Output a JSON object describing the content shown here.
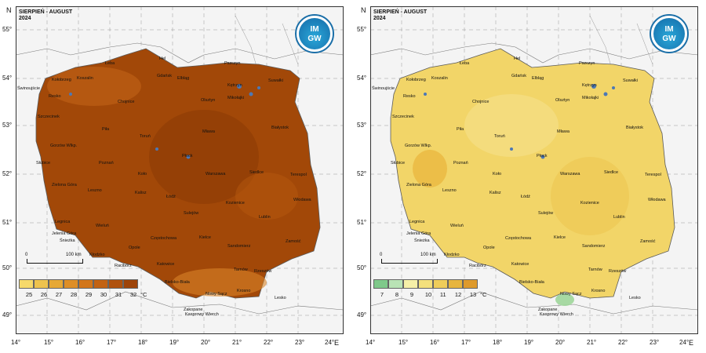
{
  "title_line1": "SIERPIEŃ - AUGUST",
  "title_line2": "2024",
  "axis_north": "N",
  "axis_east": "E",
  "latitudes": [
    "55°",
    "54°",
    "53°",
    "52°",
    "51°",
    "50°",
    "49°"
  ],
  "longitudes": [
    "14°",
    "15°",
    "16°",
    "17°",
    "18°",
    "19°",
    "20°",
    "21°",
    "22°",
    "23°",
    "24°"
  ],
  "scale": {
    "zero": "0",
    "label": "100 km"
  },
  "logo": {
    "line1": "IM",
    "line2": "GW"
  },
  "cities": [
    "Hel",
    "Łeba",
    "Gdańsk",
    "Elbląg",
    "Koszalin",
    "Kołobrzeg",
    "Świnoujście",
    "Resko",
    "Szczecinek",
    "Chojnice",
    "Olsztyn",
    "Kętrzyn",
    "Mikołajki",
    "Suwałki",
    "Białystok",
    "Pszczyn",
    "Piła",
    "Gorzów Wlkp.",
    "Toruń",
    "Mława",
    "Płock",
    "Słubice",
    "Poznań",
    "Koło",
    "Warszawa",
    "Siedlce",
    "Terespol",
    "Zielona Góra",
    "Leszno",
    "Kalisz",
    "Łódź",
    "Włodawa",
    "Sulejów",
    "Kozienice",
    "Legnica",
    "Wieluń",
    "Lublin",
    "Jelenia Góra",
    "Śnieżka",
    "Częstochowa",
    "Kielce",
    "Sandomierz",
    "Opole",
    "Zamość",
    "Kłodzko",
    "Racibórz",
    "Katowice",
    "Tarnów",
    "Bielsko-Biała",
    "Rzeszów",
    "Krosno",
    "Nowy Sącz",
    "Lesko",
    "Zakopane",
    "Kasprowy Wierch"
  ],
  "panels": [
    {
      "id": "max-temperature",
      "legend_colors": [
        "#f6d96a",
        "#eec34e",
        "#e6a835",
        "#de8e26",
        "#d2761b",
        "#c26213",
        "#b0520e",
        "#9e4409"
      ],
      "legend_ticks": [
        "25",
        "26",
        "27",
        "28",
        "29",
        "30",
        "31",
        "32"
      ],
      "unit": "°C",
      "map_fill": "#a24808",
      "patch_colors": [
        "#8a3a06",
        "#c7681a",
        "#d98428",
        "#b85a10"
      ]
    },
    {
      "id": "min-temperature",
      "legend_colors": [
        "#7fc98a",
        "#b9e3b5",
        "#f6f0a8",
        "#f4e07c",
        "#efcd5a",
        "#e7b53e",
        "#de9a2c"
      ],
      "legend_ticks": [
        "7",
        "8",
        "9",
        "10",
        "11",
        "12",
        "13"
      ],
      "unit": "°C",
      "map_fill": "#f2d568",
      "patch_colors": [
        "#e9b43a",
        "#f6e597",
        "#eac24a",
        "#9fd69a"
      ]
    }
  ]
}
